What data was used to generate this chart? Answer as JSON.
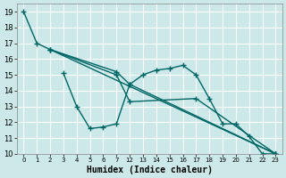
{
  "xlabel": "Humidex (Indice chaleur)",
  "bg_color": "#cce8e8",
  "grid_color": "#ffffff",
  "line_color": "#006666",
  "ylim": [
    10,
    19.5
  ],
  "yticks": [
    10,
    11,
    12,
    13,
    14,
    15,
    16,
    17,
    18,
    19
  ],
  "xtick_labels": [
    "0",
    "1",
    "2",
    "3",
    "4",
    "5",
    "6",
    "7",
    "12",
    "13",
    "14",
    "15",
    "16",
    "17",
    "18",
    "19",
    "20",
    "21",
    "22",
    "23"
  ],
  "series": [
    {
      "xi": [
        0,
        1,
        2,
        19
      ],
      "y": [
        19,
        17,
        16.6,
        10
      ]
    },
    {
      "xi": [
        2,
        7,
        8,
        19
      ],
      "y": [
        16.6,
        15.2,
        14.4,
        10
      ]
    },
    {
      "xi": [
        2,
        7,
        8,
        13,
        19
      ],
      "y": [
        16.6,
        15.0,
        13.3,
        13.5,
        10
      ]
    },
    {
      "xi": [
        3,
        4,
        5,
        6,
        7,
        8,
        9,
        10,
        11,
        12,
        13,
        14,
        15,
        16,
        17,
        18,
        19
      ],
      "y": [
        15.1,
        13.0,
        11.6,
        11.7,
        11.9,
        14.4,
        15.0,
        15.3,
        15.4,
        15.6,
        15.0,
        13.5,
        11.9,
        11.9,
        11.1,
        10.0,
        10.0
      ]
    }
  ]
}
